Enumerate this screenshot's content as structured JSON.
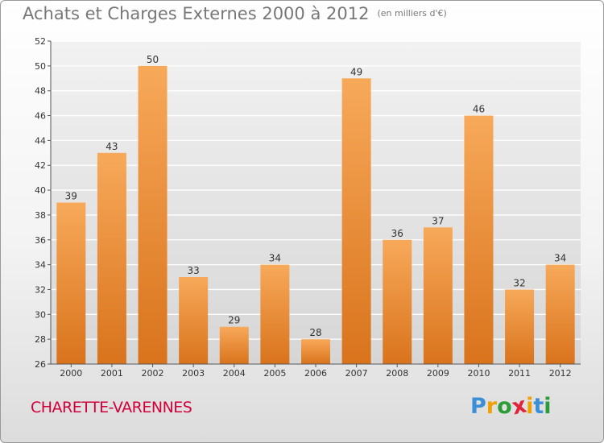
{
  "header": {
    "title": "Achats et Charges Externes 2000 à 2012",
    "unit": "(en milliers d'€)"
  },
  "footer": {
    "city": "CHARETTE-VARENNES",
    "logo": {
      "text": "Proxiti",
      "letters": [
        "P",
        "r",
        "o",
        "x",
        "i",
        "t",
        "i"
      ],
      "colors": [
        "#3a8fd6",
        "#f0a000",
        "#2c9b3a",
        "#e2233c",
        "#f0a000",
        "#3a8fd6",
        "#2c9b3a"
      ]
    }
  },
  "chart_data": {
    "type": "bar",
    "categories": [
      "2000",
      "2001",
      "2002",
      "2003",
      "2004",
      "2005",
      "2006",
      "2007",
      "2008",
      "2009",
      "2010",
      "2011",
      "2012"
    ],
    "values": [
      39,
      43,
      50,
      33,
      29,
      34,
      28,
      49,
      36,
      37,
      46,
      32,
      34
    ],
    "ylim": [
      26,
      52
    ],
    "yticks": [
      26,
      28,
      30,
      32,
      34,
      36,
      38,
      40,
      42,
      44,
      46,
      48,
      50,
      52
    ],
    "grid": true,
    "bar_color_top": "#f7a95a",
    "bar_color_bottom": "#d9731c"
  }
}
